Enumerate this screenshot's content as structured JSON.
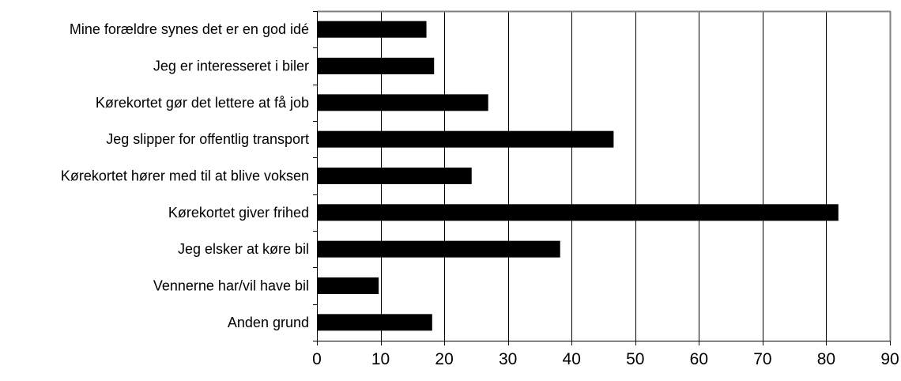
{
  "chart_data": {
    "type": "bar",
    "orientation": "horizontal",
    "title": "",
    "xlabel": "",
    "ylabel": "",
    "categories": [
      "Mine forældre synes det er en god idé",
      "Jeg er interesseret i biler",
      "Kørekortet gør det lettere at få job",
      "Jeg slipper for offentlig transport",
      "Kørekortet hører med til at blive voksen",
      "Kørekortet giver frihed",
      "Jeg elsker at køre bil",
      "Vennerne har/vil have bil",
      "Anden grund"
    ],
    "values": [
      17.2,
      18.4,
      26.9,
      46.6,
      24.3,
      81.9,
      38.2,
      9.7,
      18.1
    ],
    "xlim": [
      0,
      90
    ],
    "xticks": [
      "0",
      "10",
      "20",
      "30",
      "40",
      "50",
      "60",
      "70",
      "80",
      "90"
    ],
    "grid": "vertical",
    "legend": "none",
    "bar_color": "#000000",
    "grid_color": "#000000",
    "frame_color": "#808080"
  }
}
